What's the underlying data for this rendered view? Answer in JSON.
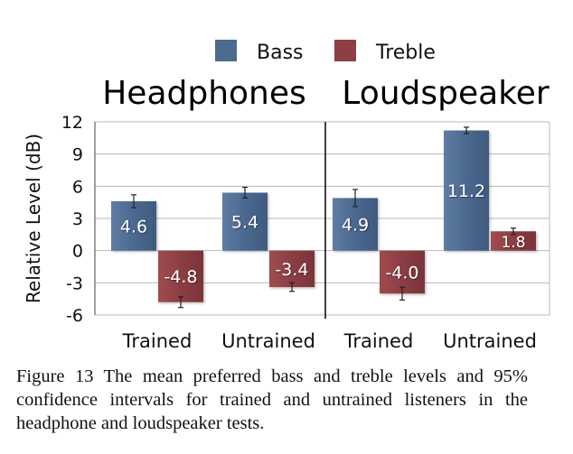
{
  "chart_data": {
    "type": "bar",
    "legend": {
      "placement": "top",
      "items": [
        {
          "name": "Bass",
          "color": "#4d6a8f"
        },
        {
          "name": "Treble",
          "color": "#8e3f44"
        }
      ]
    },
    "panels": [
      {
        "title": "Headphones",
        "categories": [
          "Trained",
          "Untrained"
        ],
        "series": [
          {
            "name": "Bass",
            "values": [
              4.6,
              5.4
            ],
            "ci": [
              0.6,
              0.5
            ],
            "labels": [
              "4.6",
              "5.4"
            ]
          },
          {
            "name": "Treble",
            "values": [
              -4.8,
              -3.4
            ],
            "ci": [
              0.5,
              0.4
            ],
            "labels": [
              "-4.8",
              "-3.4"
            ]
          }
        ]
      },
      {
        "title": "Loudspeaker",
        "categories": [
          "Trained",
          "Untrained"
        ],
        "series": [
          {
            "name": "Bass",
            "values": [
              4.9,
              11.2
            ],
            "ci": [
              0.8,
              0.3
            ],
            "labels": [
              "4.9",
              "11.2"
            ]
          },
          {
            "name": "Treble",
            "values": [
              -4.0,
              1.8
            ],
            "ci": [
              0.6,
              0.3
            ],
            "labels": [
              "-4.0",
              "1.8"
            ]
          }
        ]
      }
    ],
    "ylabel": "Relative Level (dB)",
    "ylim": [
      -6,
      12
    ],
    "yticks": [
      12,
      9,
      6,
      3,
      0,
      -3,
      -6
    ],
    "grid": true
  },
  "caption": "Figure 13 The mean preferred bass and treble levels and 95% confidence intervals for trained and untrained listeners in the headphone and loudspeaker tests."
}
